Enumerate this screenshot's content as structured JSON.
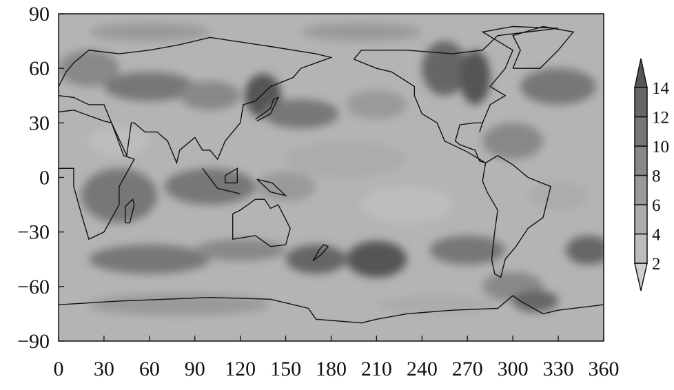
{
  "chart_data": {
    "type": "heatmap",
    "title": "",
    "xlabel": "",
    "ylabel": "",
    "xlim": [
      0,
      360
    ],
    "ylim": [
      -90,
      90
    ],
    "x_ticks": [
      "0",
      "30",
      "60",
      "90",
      "120",
      "150",
      "180",
      "210",
      "240",
      "270",
      "300",
      "330",
      "360"
    ],
    "y_ticks": [
      "90",
      "60",
      "30",
      "0",
      "−30",
      "−60",
      "−90"
    ],
    "colorbar": {
      "ticks": [
        "2",
        "4",
        "6",
        "8",
        "10",
        "12",
        "14"
      ],
      "extend": "both",
      "colors": [
        "#cfcfcf",
        "#bdbdbd",
        "#acacac",
        "#9a9a9a",
        "#888888",
        "#777777",
        "#666666",
        "#555555"
      ]
    },
    "background_level_color": "#b4b4b4",
    "coastlines": true
  }
}
